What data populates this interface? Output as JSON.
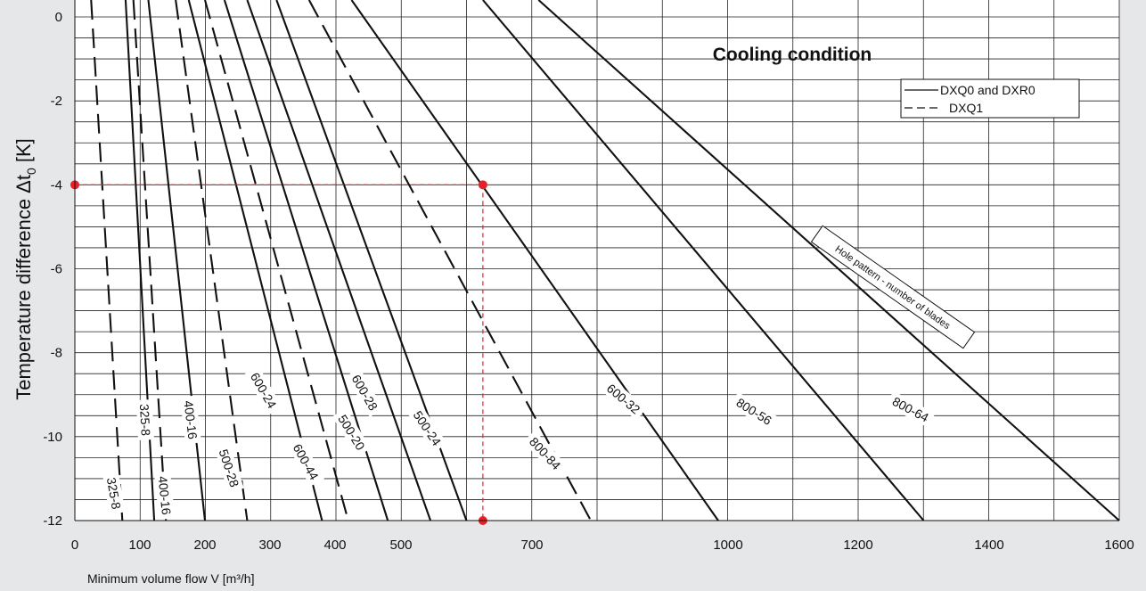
{
  "chart_data": {
    "type": "line",
    "title": "Cooling condition",
    "xlabel": "Minimum volume flow V [m³/h]",
    "ylabel_main": "Temperature difference Δt",
    "ylabel_sub": "0",
    "ylabel_unit": " [K]",
    "xlim": [
      0,
      1600
    ],
    "ylim": [
      -12,
      0
    ],
    "x_scale": "nonlinear",
    "x_tick_labels": [
      "0",
      "100",
      "200",
      "300",
      "400",
      "500",
      "700",
      "1000",
      "1200",
      "1400",
      "1600"
    ],
    "y_tick_labels": [
      "0",
      "-2",
      "-4",
      "-6",
      "-8",
      "-10",
      "-12"
    ],
    "y_ticks": [
      0,
      -2,
      -4,
      -6,
      -8,
      -10,
      -12
    ],
    "grid": true,
    "legend": [
      {
        "label": "DXQ0 and DXR0",
        "style": "solid"
      },
      {
        "label": "DXQ1",
        "style": "dashed"
      }
    ],
    "legend_position": "top-right",
    "annotation": "Hole pattern - number of blades",
    "series": [
      {
        "name": "325-8",
        "style": "dashed",
        "x0": 25,
        "x12": 73
      },
      {
        "name": "325-8",
        "style": "solid",
        "x0": 78,
        "x12": 122
      },
      {
        "name": "400-16",
        "style": "dashed",
        "x0": 90,
        "x12": 140
      },
      {
        "name": "400-16",
        "style": "solid",
        "x0": 113,
        "x12": 200
      },
      {
        "name": "500-28",
        "style": "dashed",
        "x0": 155,
        "x12": 265
      },
      {
        "name": "600-24",
        "style": "solid",
        "x0": 175,
        "x12": 380
      },
      {
        "name": "600-44",
        "style": "dashed",
        "x0": 200,
        "x12": 420
      },
      {
        "name": "500-20",
        "style": "solid",
        "x0": 230,
        "x12": 480
      },
      {
        "name": "600-28",
        "style": "solid",
        "x0": 265,
        "x12": 545
      },
      {
        "name": "500-24",
        "style": "solid",
        "x0": 310,
        "x12": 600
      },
      {
        "name": "800-84",
        "style": "dashed",
        "x0": 360,
        "x12": 790
      },
      {
        "name": "600-32",
        "style": "solid",
        "x0": 425,
        "x12": 985
      },
      {
        "name": "800-56",
        "style": "solid",
        "x0": 625,
        "x12": 1300
      },
      {
        "name": "800-64",
        "style": "solid",
        "x0": 710,
        "x12": 1600
      }
    ],
    "curve_labels": [
      {
        "text": "325-8",
        "x": 60,
        "y": -11.35,
        "rot": 80
      },
      {
        "text": "325-8",
        "x": 108,
        "y": -9.6,
        "rot": 87
      },
      {
        "text": "400-16",
        "x": 138,
        "y": -11.4,
        "rot": 84
      },
      {
        "text": "400-16",
        "x": 178,
        "y": -9.6,
        "rot": 83
      },
      {
        "text": "500-28",
        "x": 237,
        "y": -10.75,
        "rot": 72
      },
      {
        "text": "600-24",
        "x": 290,
        "y": -8.9,
        "rot": 60
      },
      {
        "text": "600-44",
        "x": 355,
        "y": -10.6,
        "rot": 61
      },
      {
        "text": "600-28",
        "x": 445,
        "y": -8.95,
        "rot": 60
      },
      {
        "text": "500-20",
        "x": 425,
        "y": -9.9,
        "rot": 58
      },
      {
        "text": "500-24",
        "x": 540,
        "y": -9.8,
        "rot": 56
      },
      {
        "text": "800-84",
        "x": 720,
        "y": -10.4,
        "rot": 47
      },
      {
        "text": "600-32",
        "x": 840,
        "y": -9.1,
        "rot": 40
      },
      {
        "text": "800-56",
        "x": 1040,
        "y": -9.4,
        "rot": 32
      },
      {
        "text": "800-64",
        "x": 1280,
        "y": -9.35,
        "rot": 28
      }
    ],
    "highlight": {
      "x": 625,
      "y": -4
    }
  }
}
